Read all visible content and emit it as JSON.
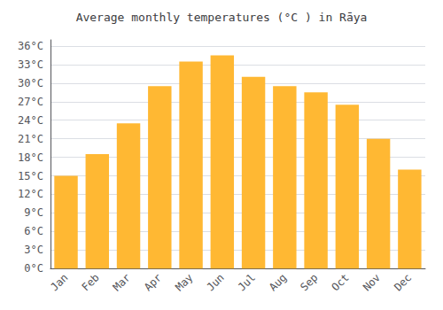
{
  "chart_data": {
    "type": "bar",
    "title": "Average monthly temperatures (°C ) in Rāya",
    "categories": [
      "Jan",
      "Feb",
      "Mar",
      "Apr",
      "May",
      "Jun",
      "Jul",
      "Aug",
      "Sep",
      "Oct",
      "Nov",
      "Dec"
    ],
    "values": [
      15,
      18.5,
      23.5,
      29.5,
      33.5,
      34.5,
      31,
      29.5,
      28.5,
      26.5,
      21,
      16
    ],
    "color": "#FFB833",
    "ylim": [
      0,
      37
    ],
    "yticks": [
      {
        "value": 0,
        "label": "0°C"
      },
      {
        "value": 3,
        "label": "3°C"
      },
      {
        "value": 6,
        "label": "6°C"
      },
      {
        "value": 9,
        "label": "9°C"
      },
      {
        "value": 12,
        "label": "12°C"
      },
      {
        "value": 15,
        "label": "15°C"
      },
      {
        "value": 18,
        "label": "18°C"
      },
      {
        "value": 21,
        "label": "21°C"
      },
      {
        "value": 24,
        "label": "24°C"
      },
      {
        "value": 27,
        "label": "27°C"
      },
      {
        "value": 30,
        "label": "30°C"
      },
      {
        "value": 33,
        "label": "33°C"
      },
      {
        "value": 36,
        "label": "36°C"
      }
    ],
    "grid": true
  }
}
